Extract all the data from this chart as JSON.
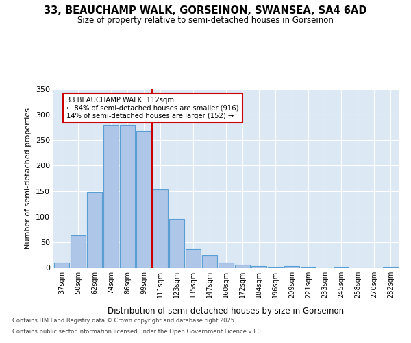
{
  "title1": "33, BEAUCHAMP WALK, GORSEINON, SWANSEA, SA4 6AD",
  "title2": "Size of property relative to semi-detached houses in Gorseinon",
  "xlabel": "Distribution of semi-detached houses by size in Gorseinon",
  "ylabel": "Number of semi-detached properties",
  "categories": [
    "37sqm",
    "50sqm",
    "62sqm",
    "74sqm",
    "86sqm",
    "99sqm",
    "111sqm",
    "123sqm",
    "135sqm",
    "147sqm",
    "160sqm",
    "172sqm",
    "184sqm",
    "196sqm",
    "209sqm",
    "221sqm",
    "233sqm",
    "245sqm",
    "258sqm",
    "270sqm",
    "282sqm"
  ],
  "values": [
    10,
    63,
    148,
    280,
    280,
    268,
    153,
    95,
    37,
    24,
    9,
    5,
    3,
    2,
    3,
    1,
    0,
    1,
    0,
    0,
    1
  ],
  "bar_color": "#aec6e8",
  "bar_edge_color": "#5a9fd4",
  "property_line_x": 6,
  "property_line_label": "33 BEAUCHAMP WALK: 112sqm",
  "pct_smaller": 84,
  "pct_smaller_n": 916,
  "pct_larger": 14,
  "pct_larger_n": 152,
  "annotation_box_color": "#ffffff",
  "annotation_box_edge_color": "#cc0000",
  "ylim": [
    0,
    350
  ],
  "yticks": [
    0,
    50,
    100,
    150,
    200,
    250,
    300,
    350
  ],
  "footer1": "Contains HM Land Registry data © Crown copyright and database right 2025.",
  "footer2": "Contains public sector information licensed under the Open Government Licence v3.0.",
  "bg_color": "#ffffff",
  "plot_bg_color": "#dce9f5"
}
